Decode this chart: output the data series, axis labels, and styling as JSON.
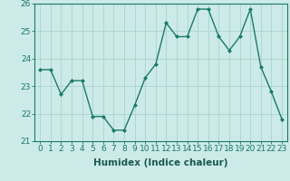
{
  "x": [
    0,
    1,
    2,
    3,
    4,
    5,
    6,
    7,
    8,
    9,
    10,
    11,
    12,
    13,
    14,
    15,
    16,
    17,
    18,
    19,
    20,
    21,
    22,
    23
  ],
  "y": [
    23.6,
    23.6,
    22.7,
    23.2,
    23.2,
    21.9,
    21.9,
    21.4,
    21.4,
    22.3,
    23.3,
    23.8,
    25.3,
    24.8,
    24.8,
    25.8,
    25.8,
    24.8,
    24.3,
    24.8,
    25.8,
    23.7,
    22.8,
    21.8
  ],
  "line_color": "#1a7a6a",
  "marker": "D",
  "marker_size": 2.0,
  "bg_color": "#cceae7",
  "grid_color": "#aad4d0",
  "xlabel": "Humidex (Indice chaleur)",
  "ylim": [
    21,
    26
  ],
  "xlim_min": -0.5,
  "xlim_max": 23.5,
  "yticks": [
    21,
    22,
    23,
    24,
    25,
    26
  ],
  "xticks": [
    0,
    1,
    2,
    3,
    4,
    5,
    6,
    7,
    8,
    9,
    10,
    11,
    12,
    13,
    14,
    15,
    16,
    17,
    18,
    19,
    20,
    21,
    22,
    23
  ],
  "xlabel_fontsize": 7.5,
  "tick_fontsize": 6.5,
  "text_color": "#1a5a50",
  "linewidth": 1.0
}
